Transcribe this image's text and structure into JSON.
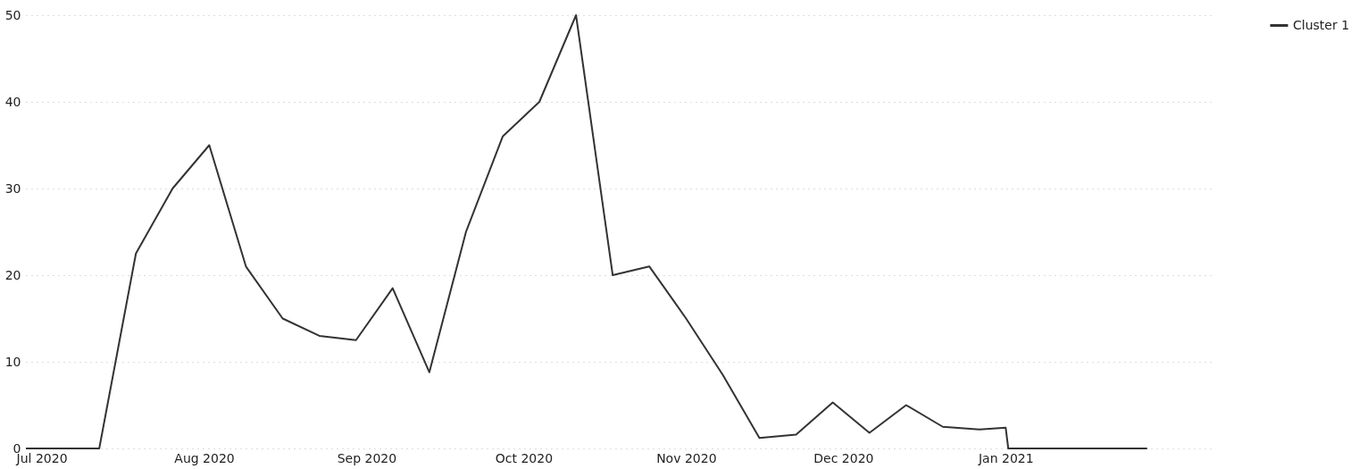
{
  "chart_data": {
    "type": "line",
    "x": [
      "2020-06-28",
      "2020-07-05",
      "2020-07-12",
      "2020-07-19",
      "2020-07-26",
      "2020-08-02",
      "2020-08-09",
      "2020-08-16",
      "2020-08-23",
      "2020-08-30",
      "2020-09-06",
      "2020-09-13",
      "2020-09-20",
      "2020-09-27",
      "2020-10-04",
      "2020-10-11",
      "2020-10-18",
      "2020-10-25",
      "2020-11-01",
      "2020-11-08",
      "2020-11-15",
      "2020-11-22",
      "2020-11-29",
      "2020-12-06",
      "2020-12-13",
      "2020-12-20",
      "2020-12-27",
      "2021-01-01",
      "2021-01-01T12:00",
      "2021-01-08",
      "2021-01-15",
      "2021-01-22",
      "2021-01-28"
    ],
    "series": [
      {
        "name": "Cluster 1",
        "color": "#333333",
        "values": [
          0,
          0,
          0,
          22.5,
          30,
          35,
          21,
          15,
          13,
          12.5,
          18.5,
          8.8,
          25,
          36,
          40,
          50,
          20,
          21,
          15,
          8.5,
          1.2,
          1.6,
          5.3,
          1.8,
          5,
          2.5,
          2.2,
          2.4,
          0,
          0,
          0,
          0,
          0
        ]
      }
    ],
    "xlim": [
      "2020-06-28",
      "2021-02-10"
    ],
    "xticks": [
      {
        "value": "2020-07-01",
        "label": "Jul 2020"
      },
      {
        "value": "2020-08-01",
        "label": "Aug 2020"
      },
      {
        "value": "2020-09-01",
        "label": "Sep 2020"
      },
      {
        "value": "2020-10-01",
        "label": "Oct 2020"
      },
      {
        "value": "2020-11-01",
        "label": "Nov 2020"
      },
      {
        "value": "2020-12-01",
        "label": "Dec 2020"
      },
      {
        "value": "2021-01-01",
        "label": "Jan 2021"
      }
    ],
    "ylim": [
      0,
      50
    ],
    "yticks": [
      0,
      10,
      20,
      30,
      40,
      50
    ],
    "grid": "y",
    "legend": "top right",
    "line_style": "solid"
  }
}
